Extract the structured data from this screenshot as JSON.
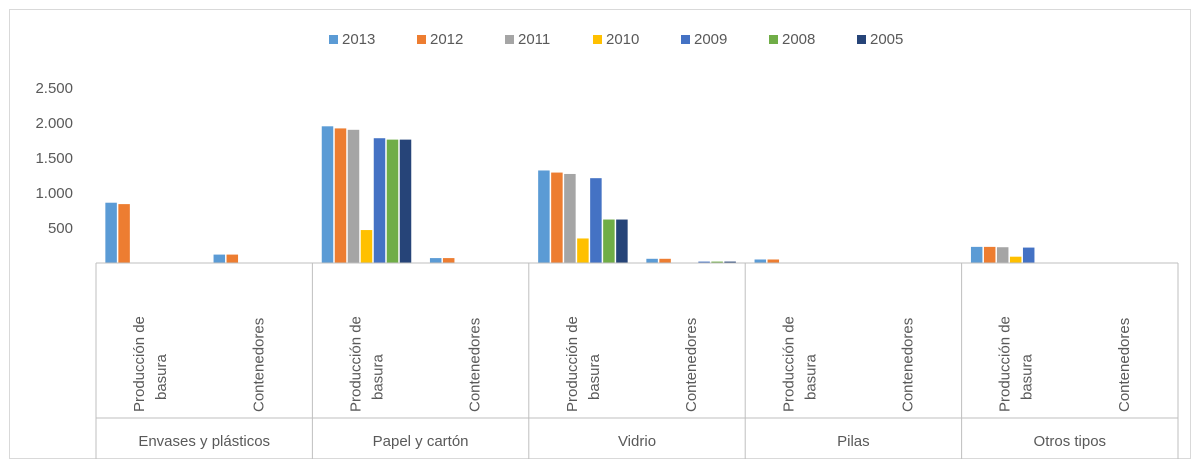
{
  "chart_data": {
    "type": "bar",
    "title": "",
    "xlabel": "",
    "ylabel": "",
    "ylim": [
      0,
      2500
    ],
    "yticks": [
      "500",
      "1.000",
      "1.500",
      "2.000",
      "2.500"
    ],
    "ytick_values": [
      500,
      1000,
      1500,
      2000,
      2500
    ],
    "grid": false,
    "legend_position": "top",
    "groups": [
      "Envases y plásticos",
      "Papel y cartón",
      "Vidrio",
      "Pilas",
      "Otros tipos"
    ],
    "subcategories": [
      "Producción de basura",
      "Contenedores"
    ],
    "categories": [
      "Envases y plásticos | Producción de basura",
      "Envases y plásticos | Contenedores",
      "Papel y cartón | Producción de basura",
      "Papel y cartón | Contenedores",
      "Vidrio | Producción de basura",
      "Vidrio | Contenedores",
      "Pilas | Producción de basura",
      "Pilas | Contenedores",
      "Otros tipos | Producción de basura",
      "Otros tipos | Contenedores"
    ],
    "series": [
      {
        "name": "2013",
        "color": "#5b9bd5",
        "values": [
          860,
          120,
          1950,
          70,
          1320,
          60,
          50,
          0,
          230,
          0
        ]
      },
      {
        "name": "2012",
        "color": "#ed7d31",
        "values": [
          840,
          120,
          1920,
          70,
          1290,
          60,
          50,
          0,
          230,
          0
        ]
      },
      {
        "name": "2011",
        "color": "#a5a5a5",
        "values": [
          0,
          0,
          1900,
          0,
          1270,
          0,
          0,
          0,
          225,
          0
        ]
      },
      {
        "name": "2010",
        "color": "#ffc000",
        "values": [
          0,
          0,
          470,
          0,
          350,
          0,
          0,
          0,
          90,
          0
        ]
      },
      {
        "name": "2009",
        "color": "#4472c4",
        "values": [
          0,
          0,
          1780,
          0,
          1210,
          20,
          0,
          0,
          220,
          0
        ]
      },
      {
        "name": "2008",
        "color": "#70ad47",
        "values": [
          0,
          0,
          1760,
          0,
          620,
          20,
          0,
          0,
          0,
          0
        ]
      },
      {
        "name": "2005",
        "color": "#264478",
        "values": [
          0,
          0,
          1760,
          0,
          620,
          20,
          0,
          0,
          0,
          0
        ]
      }
    ]
  }
}
